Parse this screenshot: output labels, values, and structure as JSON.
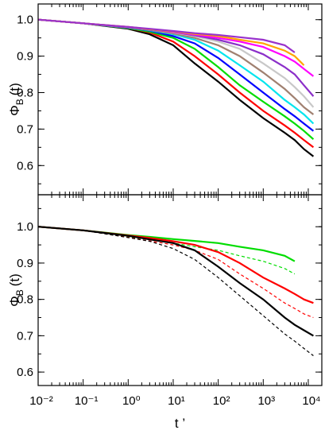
{
  "chart_data": [
    {
      "type": "line",
      "xscale": "log",
      "xlim": [
        0.01,
        20000
      ],
      "ylim": [
        0.52,
        1.043
      ],
      "xticks": [
        0.01,
        0.1,
        1,
        10,
        100,
        1000,
        10000
      ],
      "yticks": [
        0.6,
        0.7,
        0.8,
        0.9,
        {
          "value": 1,
          "label": "1.0"
        }
      ],
      "ylabel": {
        "symbol": "Φ",
        "subscript": "B",
        "suffix": "(t)"
      },
      "x": [
        0.01,
        0.1,
        1,
        3,
        10,
        30,
        100,
        300,
        1000,
        3000,
        5000,
        8000,
        13000
      ],
      "series": [
        {
          "color": "#000000",
          "values": [
            1.0,
            0.99,
            0.975,
            0.96,
            0.93,
            0.88,
            0.83,
            0.78,
            0.73,
            0.69,
            0.67,
            0.645,
            0.625
          ]
        },
        {
          "color": "#ff0000",
          "values": [
            1.0,
            0.99,
            0.977,
            0.965,
            0.94,
            0.9,
            0.85,
            0.8,
            0.75,
            0.71,
            0.69,
            0.67,
            0.65
          ]
        },
        {
          "color": "#00dd00",
          "values": [
            1.0,
            0.99,
            0.977,
            0.967,
            0.95,
            0.92,
            0.87,
            0.82,
            0.775,
            0.735,
            0.715,
            0.695,
            0.672
          ]
        },
        {
          "color": "#0000ff",
          "values": [
            1.0,
            0.99,
            0.978,
            0.97,
            0.955,
            0.935,
            0.895,
            0.85,
            0.8,
            0.755,
            0.735,
            0.715,
            0.695
          ]
        },
        {
          "color": "#00e5ee",
          "values": [
            1.0,
            0.99,
            0.978,
            0.971,
            0.96,
            0.945,
            0.915,
            0.875,
            0.83,
            0.78,
            0.76,
            0.74,
            0.715
          ]
        },
        {
          "color": "#a08070",
          "values": [
            1.0,
            0.99,
            0.979,
            0.972,
            0.962,
            0.95,
            0.93,
            0.9,
            0.855,
            0.81,
            0.785,
            0.76,
            0.74
          ]
        },
        {
          "color": "#c8c8c8",
          "values": [
            1.0,
            0.99,
            0.979,
            0.973,
            0.965,
            0.955,
            0.94,
            0.92,
            0.88,
            0.84,
            0.815,
            0.79,
            0.76
          ]
        },
        {
          "color": "#8b2fc9",
          "values": [
            1.0,
            0.99,
            0.979,
            0.973,
            0.966,
            0.957,
            0.945,
            0.93,
            0.905,
            0.87,
            0.85,
            0.82,
            0.79
          ]
        },
        {
          "color": "#ff00ff",
          "values": [
            1.0,
            0.99,
            0.98,
            0.974,
            0.967,
            0.959,
            0.95,
            0.94,
            0.925,
            0.9,
            0.885,
            0.865,
            0.845
          ]
        },
        {
          "color": "#ffa500",
          "values": [
            1.0,
            0.99,
            0.98,
            0.974,
            0.968,
            0.961,
            0.955,
            0.945,
            0.935,
            0.915,
            0.9,
            0.875,
            null
          ]
        },
        {
          "color": "#9932cc",
          "values": [
            1.0,
            0.99,
            0.98,
            0.975,
            0.969,
            0.963,
            0.958,
            0.952,
            0.945,
            0.93,
            0.91,
            null,
            null
          ]
        }
      ]
    },
    {
      "type": "line",
      "xscale": "log",
      "xlim": [
        0.01,
        20000
      ],
      "ylim": [
        0.563,
        1.088
      ],
      "xticks": [
        {
          "value": 0.01,
          "label": "10⁻²"
        },
        {
          "value": 0.1,
          "label": "10⁻¹"
        },
        {
          "value": 1,
          "label": "10⁰"
        },
        {
          "value": 10,
          "label": "10¹"
        },
        {
          "value": 100,
          "label": "10²"
        },
        {
          "value": 1000,
          "label": "10³"
        },
        {
          "value": 10000,
          "label": "10⁴"
        }
      ],
      "yticks": [
        0.6,
        0.7,
        0.8,
        0.9,
        {
          "value": 1,
          "label": "1.0"
        }
      ],
      "xlabel": "t ’",
      "ylabel": {
        "symbol": "Φ",
        "subscript": "B",
        "suffix": "(t)"
      },
      "x": [
        0.01,
        0.1,
        1,
        3,
        10,
        30,
        100,
        300,
        1000,
        3000,
        5000,
        8000,
        13000
      ],
      "series": [
        {
          "color": "#00dd00",
          "dash": false,
          "values": [
            1.0,
            0.99,
            0.977,
            0.972,
            0.966,
            0.961,
            0.955,
            0.945,
            0.935,
            0.92,
            0.905,
            null,
            null
          ]
        },
        {
          "color": "#00dd00",
          "dash": true,
          "values": [
            1.0,
            0.99,
            0.972,
            0.965,
            0.955,
            0.945,
            0.935,
            0.92,
            0.905,
            0.885,
            0.87,
            null,
            null
          ]
        },
        {
          "color": "#ff0000",
          "dash": false,
          "values": [
            1.0,
            0.99,
            0.976,
            0.969,
            0.96,
            0.95,
            0.93,
            0.9,
            0.86,
            0.83,
            0.815,
            0.8,
            0.79
          ]
        },
        {
          "color": "#ff0000",
          "dash": true,
          "values": [
            1.0,
            0.99,
            0.971,
            0.961,
            0.95,
            0.935,
            0.91,
            0.87,
            0.83,
            0.79,
            0.775,
            0.76,
            0.75
          ]
        },
        {
          "color": "#000000",
          "dash": false,
          "values": [
            1.0,
            0.99,
            0.975,
            0.965,
            0.955,
            0.935,
            0.89,
            0.845,
            0.8,
            0.75,
            0.73,
            0.715,
            0.7
          ]
        },
        {
          "color": "#000000",
          "dash": true,
          "values": [
            1.0,
            0.99,
            0.97,
            0.96,
            0.94,
            0.91,
            0.86,
            0.81,
            0.755,
            0.705,
            0.685,
            0.665,
            0.645
          ]
        }
      ]
    }
  ]
}
